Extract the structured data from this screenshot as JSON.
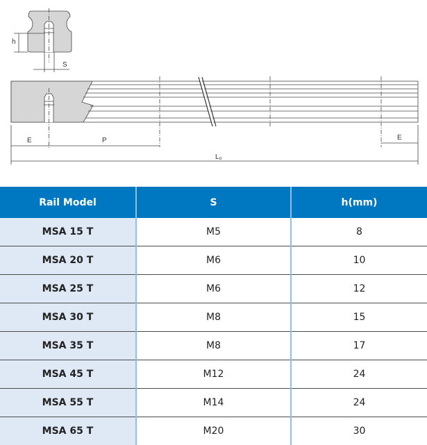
{
  "drawing": {
    "labels": {
      "h": "h",
      "s": "S",
      "e_left": "E",
      "p": "P",
      "e_right": "E",
      "l0": "L₀"
    }
  },
  "table": {
    "header_color": "#0078c1",
    "first_column_color": "#dfe8f5",
    "columns": [
      "Rail Model",
      "S",
      "h(mm)"
    ],
    "rows": [
      {
        "model": "MSA 15 T",
        "s": "M5",
        "h": "8"
      },
      {
        "model": "MSA 20 T",
        "s": "M6",
        "h": "10"
      },
      {
        "model": "MSA 25 T",
        "s": "M6",
        "h": "12"
      },
      {
        "model": "MSA 30 T",
        "s": "M8",
        "h": "15"
      },
      {
        "model": "MSA 35 T",
        "s": "M8",
        "h": "17"
      },
      {
        "model": "MSA 45 T",
        "s": "M12",
        "h": "24"
      },
      {
        "model": "MSA 55 T",
        "s": "M14",
        "h": "24"
      },
      {
        "model": "MSA 65 T",
        "s": "M20",
        "h": "30"
      }
    ]
  }
}
